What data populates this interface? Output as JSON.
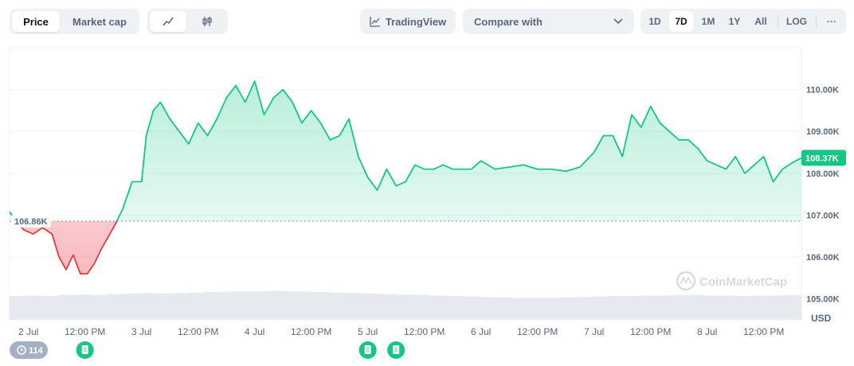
{
  "toolbar": {
    "metric_tabs": [
      {
        "label": "Price",
        "active": true
      },
      {
        "label": "Market cap",
        "active": false
      }
    ],
    "chart_type_icons": [
      "line-chart-icon",
      "candlestick-icon"
    ],
    "tradingview_label": "TradingView",
    "compare_placeholder": "Compare with",
    "ranges": [
      {
        "label": "1D",
        "active": false
      },
      {
        "label": "7D",
        "active": true
      },
      {
        "label": "1M",
        "active": false
      },
      {
        "label": "1Y",
        "active": false
      },
      {
        "label": "All",
        "active": false
      }
    ],
    "log_label": "LOG",
    "more_label": "···"
  },
  "colors": {
    "up": "#16c784",
    "down": "#ea3943",
    "grid": "#eff2f5",
    "volume": "#e6e9ee",
    "accent": "#16c784"
  },
  "chart_data": {
    "type": "area",
    "currency_label": "USD",
    "watermark": "CoinMarketCap",
    "yticks": [
      105000,
      106000,
      107000,
      108000,
      109000,
      110000
    ],
    "ytick_labels": [
      "105.00K",
      "106.00K",
      "107.00K",
      "108.00K",
      "109.00K",
      "110.00K"
    ],
    "ylim": [
      104500,
      111000
    ],
    "baseline": 106860,
    "baseline_label": "106.86K",
    "current_price": 108370,
    "current_label": "108.37K",
    "x_start": "2024-07-01T20:00",
    "x_end": "2024-07-08T20:00",
    "xticks": [
      {
        "t": "2024-07-02T00:00",
        "label": "2 Jul"
      },
      {
        "t": "2024-07-02T12:00",
        "label": "12:00 PM"
      },
      {
        "t": "2024-07-03T00:00",
        "label": "3 Jul"
      },
      {
        "t": "2024-07-03T12:00",
        "label": "12:00 PM"
      },
      {
        "t": "2024-07-04T00:00",
        "label": "4 Jul"
      },
      {
        "t": "2024-07-04T12:00",
        "label": "12:00 PM"
      },
      {
        "t": "2024-07-05T00:00",
        "label": "5 Jul"
      },
      {
        "t": "2024-07-05T12:00",
        "label": "12:00 PM"
      },
      {
        "t": "2024-07-06T00:00",
        "label": "6 Jul"
      },
      {
        "t": "2024-07-06T12:00",
        "label": "12:00 PM"
      },
      {
        "t": "2024-07-07T00:00",
        "label": "7 Jul"
      },
      {
        "t": "2024-07-07T12:00",
        "label": "12:00 PM"
      },
      {
        "t": "2024-07-08T00:00",
        "label": "8 Jul"
      },
      {
        "t": "2024-07-08T12:00",
        "label": "12:00 PM"
      }
    ],
    "series": [
      {
        "x": [
          "2024-07-01T20:00",
          "2024-07-01T21:30",
          "2024-07-01T23:00",
          "2024-07-02T01:00",
          "2024-07-02T03:00",
          "2024-07-02T05:00",
          "2024-07-02T06:30",
          "2024-07-02T08:00",
          "2024-07-02T09:30",
          "2024-07-02T11:00",
          "2024-07-02T12:30",
          "2024-07-02T14:00",
          "2024-07-02T15:30",
          "2024-07-02T17:00",
          "2024-07-02T18:30",
          "2024-07-02T20:00",
          "2024-07-02T22:00",
          "2024-07-03T00:00",
          "2024-07-03T01:00",
          "2024-07-03T02:30",
          "2024-07-03T04:00",
          "2024-07-03T06:00",
          "2024-07-03T08:00",
          "2024-07-03T10:00",
          "2024-07-03T12:00",
          "2024-07-03T14:00",
          "2024-07-03T16:00",
          "2024-07-03T18:00",
          "2024-07-03T20:00",
          "2024-07-03T22:00",
          "2024-07-04T00:00",
          "2024-07-04T02:00",
          "2024-07-04T04:00",
          "2024-07-04T06:00",
          "2024-07-04T08:00",
          "2024-07-04T10:00",
          "2024-07-04T12:00",
          "2024-07-04T14:00",
          "2024-07-04T16:00",
          "2024-07-04T18:00",
          "2024-07-04T20:00",
          "2024-07-04T22:00",
          "2024-07-05T00:00",
          "2024-07-05T02:00",
          "2024-07-05T04:00",
          "2024-07-05T06:00",
          "2024-07-05T08:00",
          "2024-07-05T10:00",
          "2024-07-05T12:00",
          "2024-07-05T14:00",
          "2024-07-05T16:00",
          "2024-07-05T18:00",
          "2024-07-05T20:00",
          "2024-07-05T22:00",
          "2024-07-06T00:00",
          "2024-07-06T03:00",
          "2024-07-06T06:00",
          "2024-07-06T09:00",
          "2024-07-06T12:00",
          "2024-07-06T15:00",
          "2024-07-06T18:00",
          "2024-07-06T21:00",
          "2024-07-07T00:00",
          "2024-07-07T02:00",
          "2024-07-07T04:00",
          "2024-07-07T06:00",
          "2024-07-07T08:00",
          "2024-07-07T10:00",
          "2024-07-07T12:00",
          "2024-07-07T14:00",
          "2024-07-07T16:00",
          "2024-07-07T18:00",
          "2024-07-07T20:00",
          "2024-07-07T22:00",
          "2024-07-08T00:00",
          "2024-07-08T02:00",
          "2024-07-08T04:00",
          "2024-07-08T06:00",
          "2024-07-08T08:00",
          "2024-07-08T10:00",
          "2024-07-08T12:00",
          "2024-07-08T14:00",
          "2024-07-08T16:00",
          "2024-07-08T18:00",
          "2024-07-08T20:00"
        ],
        "values": [
          107080,
          106850,
          106650,
          106550,
          106700,
          106550,
          106000,
          105700,
          106050,
          105600,
          105600,
          105850,
          106200,
          106500,
          106800,
          107150,
          107800,
          107800,
          108900,
          109500,
          109700,
          109300,
          109000,
          108700,
          109200,
          108900,
          109300,
          109800,
          110100,
          109700,
          110200,
          109400,
          109800,
          110000,
          109700,
          109200,
          109500,
          109200,
          108800,
          108900,
          109300,
          108400,
          107900,
          107600,
          108100,
          107700,
          107800,
          108200,
          108100,
          108100,
          108200,
          108100,
          108100,
          108100,
          108300,
          108100,
          108150,
          108200,
          108100,
          108100,
          108050,
          108150,
          108500,
          108900,
          108900,
          108400,
          109400,
          109100,
          109600,
          109200,
          109000,
          108800,
          108800,
          108600,
          108300,
          108200,
          108100,
          108400,
          108000,
          108200,
          108400,
          107800,
          108100,
          108250,
          108370
        ]
      }
    ],
    "volume": [
      0.3,
      0.31,
      0.3,
      0.32,
      0.33,
      0.32,
      0.34,
      0.35,
      0.36,
      0.35,
      0.36,
      0.37,
      0.38,
      0.39,
      0.4,
      0.4,
      0.41,
      0.4,
      0.39,
      0.38,
      0.37,
      0.36,
      0.35,
      0.34,
      0.33,
      0.32,
      0.31,
      0.3,
      0.29,
      0.28,
      0.27,
      0.26,
      0.26,
      0.26,
      0.27,
      0.28,
      0.29,
      0.3,
      0.3,
      0.31,
      0.31,
      0.32,
      0.32,
      0.31,
      0.31,
      0.3,
      0.31,
      0.31,
      0.32
    ]
  },
  "events": {
    "count_badge": "114",
    "news_marker_times": [
      "2024-07-02T12:00",
      "2024-07-05T00:00",
      "2024-07-05T06:00"
    ]
  }
}
